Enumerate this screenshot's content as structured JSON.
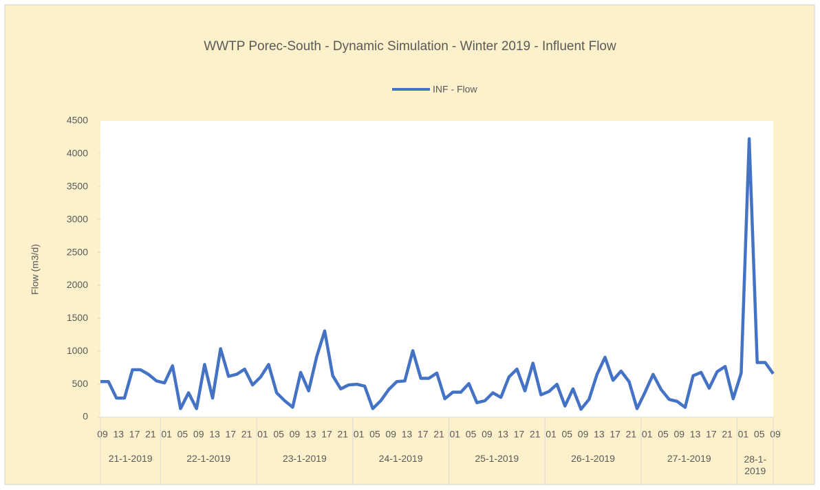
{
  "chart_data": {
    "type": "line",
    "title": "WWTP Porec-South - Dynamic Simulation - Winter 2019 - Influent Flow",
    "y_label": "Flow (m3/d)",
    "categories": [
      "09",
      null,
      "13",
      null,
      "17",
      null,
      "21",
      null,
      "01",
      null,
      "05",
      null,
      "09",
      null,
      "13",
      null,
      "17",
      null,
      "21",
      null,
      "01",
      null,
      "05",
      null,
      "09",
      null,
      "13",
      null,
      "17",
      null,
      "21",
      null,
      "01",
      null,
      "05",
      null,
      "09",
      null,
      "13",
      null,
      "17",
      null,
      "21",
      null,
      "01",
      null,
      "05",
      null,
      "09",
      null,
      "13",
      null,
      "17",
      null,
      "21",
      null,
      "01",
      null,
      "05",
      null,
      "09",
      null,
      "13",
      null,
      "17",
      null,
      "21",
      null,
      "01",
      null,
      "05",
      null,
      "09",
      null,
      "13",
      null,
      "17",
      null,
      "21",
      null,
      "01",
      null,
      "05",
      null,
      "09"
    ],
    "groups": [
      {
        "label": "21-1-2019",
        "count": 8
      },
      {
        "label": "22-1-2019",
        "count": 12
      },
      {
        "label": "23-1-2019",
        "count": 12
      },
      {
        "label": "24-1-2019",
        "count": 12
      },
      {
        "label": "25-1-2019",
        "count": 12
      },
      {
        "label": "26-1-2019",
        "count": 12
      },
      {
        "label": "27-1-2019",
        "count": 12
      },
      {
        "label": "28-1-2019",
        "count": 5
      }
    ],
    "series": [
      {
        "name": "INF - Flow",
        "color": "#4472c4",
        "values": [
          540,
          540,
          290,
          290,
          720,
          720,
          650,
          550,
          520,
          780,
          130,
          370,
          130,
          800,
          290,
          1040,
          620,
          650,
          730,
          490,
          610,
          800,
          370,
          250,
          150,
          680,
          400,
          920,
          1310,
          630,
          430,
          490,
          500,
          470,
          130,
          250,
          420,
          540,
          550,
          1010,
          590,
          590,
          670,
          280,
          380,
          380,
          510,
          220,
          250,
          370,
          300,
          610,
          730,
          400,
          820,
          340,
          390,
          500,
          170,
          430,
          120,
          270,
          650,
          910,
          560,
          700,
          540,
          130,
          380,
          650,
          420,
          270,
          240,
          150,
          630,
          680,
          440,
          690,
          770,
          280,
          670,
          4230,
          830,
          830,
          660
        ]
      }
    ],
    "ylim": [
      0,
      4500
    ],
    "yticks": [
      0,
      500,
      1000,
      1500,
      2000,
      2500,
      3000,
      3500,
      4000,
      4500
    ],
    "legend": "top"
  }
}
